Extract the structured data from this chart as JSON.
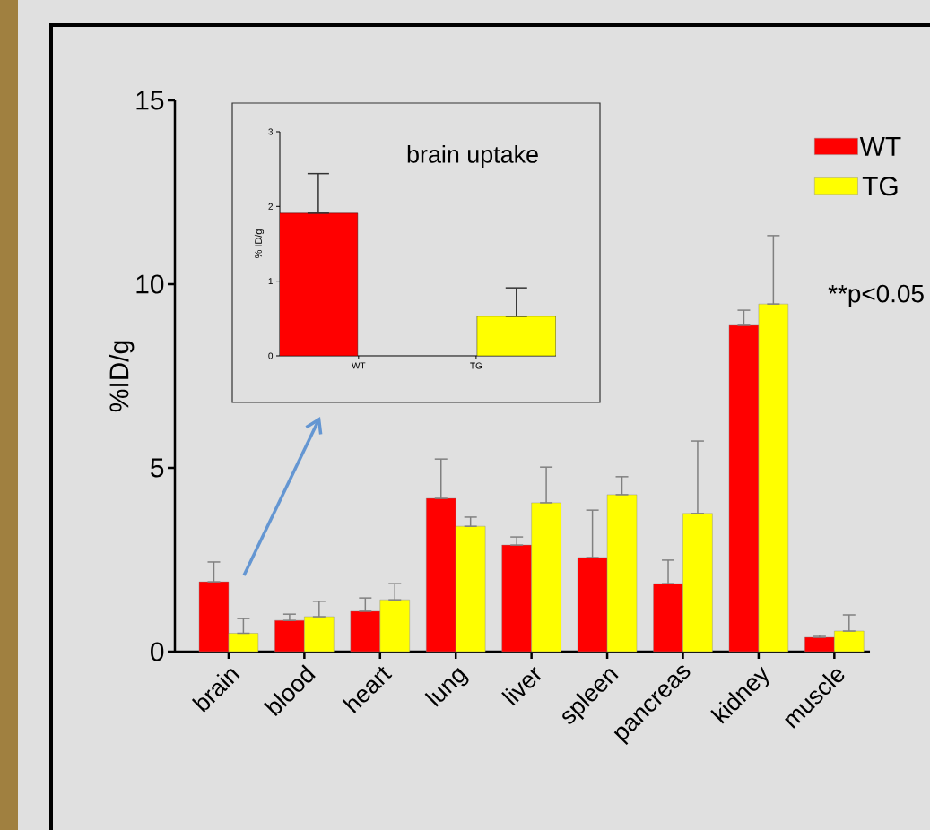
{
  "chart_data": [
    {
      "type": "bar",
      "ylabel": "%ID/g",
      "categories": [
        "brain",
        "blood",
        "heart",
        "lung",
        "liver",
        "spleen",
        "pancreas",
        "kidney",
        "muscle"
      ],
      "series": [
        {
          "name": "WT",
          "color": "#ff0000",
          "values": [
            1.9,
            0.85,
            1.1,
            4.17,
            2.9,
            2.56,
            1.85,
            8.88,
            0.39
          ],
          "errors": [
            [
              1.9,
              2.44
            ],
            [
              0.85,
              1.02
            ],
            [
              1.1,
              1.46
            ],
            [
              4.17,
              5.24
            ],
            [
              2.9,
              3.12
            ],
            [
              2.56,
              3.85
            ],
            [
              1.85,
              2.49
            ],
            [
              8.88,
              9.29
            ],
            [
              0.39,
              0.44
            ]
          ]
        },
        {
          "name": "TG",
          "color": "#ffff00",
          "values": [
            0.5,
            0.95,
            1.41,
            3.41,
            4.05,
            4.27,
            3.76,
            9.46,
            0.56
          ],
          "errors": [
            [
              0.5,
              0.9
            ],
            [
              0.95,
              1.37
            ],
            [
              1.41,
              1.85
            ],
            [
              3.41,
              3.66
            ],
            [
              4.05,
              5.02
            ],
            [
              4.27,
              4.76
            ],
            [
              3.76,
              5.73
            ],
            [
              9.46,
              11.32
            ],
            [
              0.56,
              1.0
            ]
          ]
        }
      ],
      "ylim": [
        0,
        15
      ],
      "yticks": [
        0,
        5,
        10,
        15
      ],
      "legend": "top right",
      "annotations": [
        "**p<0.05"
      ]
    },
    {
      "type": "bar",
      "title": "brain uptake",
      "ylabel": "% ID/g",
      "categories": [
        "WT",
        "TG"
      ],
      "values": [
        1.91,
        0.53
      ],
      "colors": [
        "#ff0000",
        "#ffff00"
      ],
      "errors": [
        [
          1.91,
          2.44
        ],
        [
          0.53,
          0.91
        ]
      ],
      "ylim": [
        0,
        3
      ],
      "yticks": [
        0,
        1,
        2,
        3
      ]
    }
  ]
}
